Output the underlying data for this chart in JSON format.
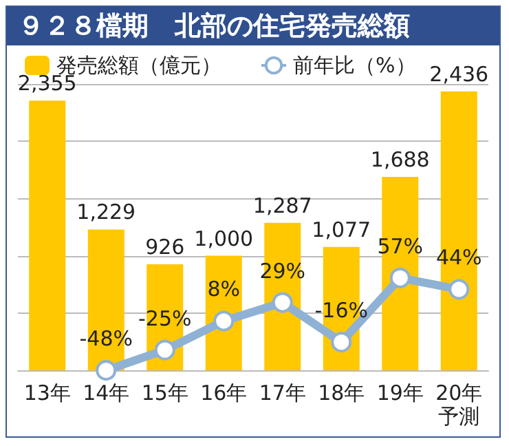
{
  "chart_data": {
    "type": "bar",
    "title": "９２８檔期　北部の住宅発売総額",
    "categories": [
      "13年",
      "14年",
      "15年",
      "16年",
      "17年",
      "18年",
      "19年",
      "20年予測"
    ],
    "series": [
      {
        "name": "発売総額（億元）",
        "color": "#ffc800",
        "values": [
          2355,
          1229,
          926,
          1000,
          1287,
          1077,
          1688,
          2436
        ],
        "value_labels": [
          "2,355",
          "1,229",
          "926",
          "1,000",
          "1,287",
          "1,077",
          "1,688",
          "2,436"
        ]
      },
      {
        "name": "前年比（%）",
        "type": "line",
        "axis": "y2",
        "color": "#8fb1d4",
        "marker": "circle",
        "values": [
          null,
          -48,
          -25,
          8,
          29,
          -16,
          57,
          44
        ],
        "value_labels": [
          null,
          "-48%",
          "-25%",
          "8%",
          "29%",
          "-16%",
          "57%",
          "44%"
        ]
      }
    ],
    "grid": "y",
    "legend": "top left"
  }
}
